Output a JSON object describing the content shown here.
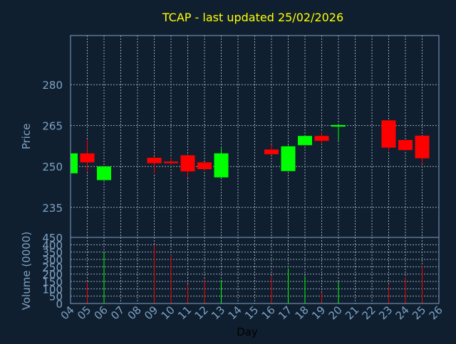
{
  "colors": {
    "background": "#0f1f2f",
    "title": "#ffff00",
    "axis_text": "#7fa2c4",
    "frame": "#7fa2c4",
    "grid": "#9aa7b4",
    "up": "#00ff00",
    "down": "#ff0000",
    "label": "#000000"
  },
  "chart_data": [
    {
      "type": "candlestick",
      "title": "TCAP - last updated 25/02/2026",
      "ylabel": "Price",
      "ylim": [
        224,
        298
      ],
      "yticks": [
        235,
        250,
        265,
        280
      ],
      "grid": true,
      "categories": [
        "04",
        "05",
        "06",
        "07",
        "08",
        "09",
        "10",
        "11",
        "12",
        "13",
        "14",
        "15",
        "16",
        "17",
        "18",
        "19",
        "20",
        "21",
        "22",
        "23",
        "24",
        "25",
        "26"
      ],
      "candles": [
        {
          "day": "04",
          "open": 247.5,
          "high": 254.8,
          "low": 247.5,
          "close": 254.8
        },
        {
          "day": "05",
          "open": 254.8,
          "high": 259.8,
          "low": 248.2,
          "close": 251.5
        },
        {
          "day": "06",
          "open": 245.0,
          "high": 250.0,
          "low": 245.0,
          "close": 250.0
        },
        {
          "day": "09",
          "open": 253.2,
          "high": 253.8,
          "low": 247.4,
          "close": 251.2
        },
        {
          "day": "10",
          "open": 251.8,
          "high": 253.0,
          "low": 250.6,
          "close": 251.2
        },
        {
          "day": "11",
          "open": 254.1,
          "high": 254.1,
          "low": 245.9,
          "close": 248.2
        },
        {
          "day": "12",
          "open": 251.5,
          "high": 251.5,
          "low": 248.6,
          "close": 249.0
        },
        {
          "day": "13",
          "open": 246.0,
          "high": 256.7,
          "low": 246.0,
          "close": 254.8
        },
        {
          "day": "16",
          "open": 256.2,
          "high": 258.0,
          "low": 254.2,
          "close": 254.5
        },
        {
          "day": "17",
          "open": 248.3,
          "high": 257.7,
          "low": 248.3,
          "close": 257.4
        },
        {
          "day": "18",
          "open": 257.8,
          "high": 261.2,
          "low": 257.8,
          "close": 261.2
        },
        {
          "day": "19",
          "open": 261.2,
          "high": 262.6,
          "low": 258.2,
          "close": 259.4
        },
        {
          "day": "20",
          "open": 264.6,
          "high": 265.2,
          "low": 259.5,
          "close": 265.2
        },
        {
          "day": "23",
          "open": 266.9,
          "high": 266.9,
          "low": 255.6,
          "close": 256.9
        },
        {
          "day": "24",
          "open": 259.7,
          "high": 259.7,
          "low": 255.8,
          "close": 256.0
        },
        {
          "day": "25",
          "open": 261.3,
          "high": 261.3,
          "low": 250.9,
          "close": 253.0
        }
      ]
    },
    {
      "type": "bar",
      "ylabel": "Volume (0000)",
      "xlabel": "Day",
      "ylim": [
        0,
        450
      ],
      "yticks": [
        0,
        50,
        100,
        150,
        200,
        250,
        300,
        350,
        400,
        450
      ],
      "grid": true,
      "categories": [
        "04",
        "05",
        "06",
        "07",
        "08",
        "09",
        "10",
        "11",
        "12",
        "13",
        "14",
        "15",
        "16",
        "17",
        "18",
        "19",
        "20",
        "21",
        "22",
        "23",
        "24",
        "25",
        "26"
      ],
      "values": [
        {
          "day": "05",
          "volume": 145,
          "direction": "down"
        },
        {
          "day": "06",
          "volume": 350,
          "direction": "up"
        },
        {
          "day": "09",
          "volume": 400,
          "direction": "down"
        },
        {
          "day": "10",
          "volume": 330,
          "direction": "down"
        },
        {
          "day": "11",
          "volume": 130,
          "direction": "down"
        },
        {
          "day": "12",
          "volume": 165,
          "direction": "down"
        },
        {
          "day": "13",
          "volume": 160,
          "direction": "up"
        },
        {
          "day": "16",
          "volume": 185,
          "direction": "down"
        },
        {
          "day": "17",
          "volume": 240,
          "direction": "up"
        },
        {
          "day": "18",
          "volume": 185,
          "direction": "up"
        },
        {
          "day": "19",
          "volume": 75,
          "direction": "down"
        },
        {
          "day": "20",
          "volume": 150,
          "direction": "up"
        },
        {
          "day": "23",
          "volume": 125,
          "direction": "down"
        },
        {
          "day": "24",
          "volume": 180,
          "direction": "down"
        },
        {
          "day": "25",
          "volume": 255,
          "direction": "down"
        }
      ]
    }
  ]
}
